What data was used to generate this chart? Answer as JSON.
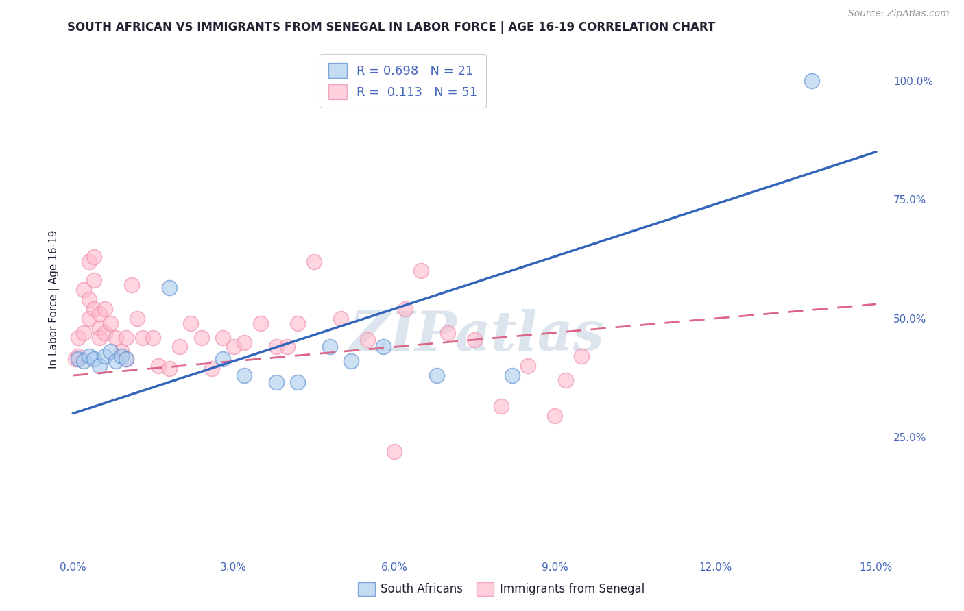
{
  "title": "SOUTH AFRICAN VS IMMIGRANTS FROM SENEGAL IN LABOR FORCE | AGE 16-19 CORRELATION CHART",
  "source": "Source: ZipAtlas.com",
  "ylabel": "In Labor Force | Age 16-19",
  "xlim": [
    -0.001,
    0.152
  ],
  "ylim": [
    0.0,
    1.08
  ],
  "xticks": [
    0.0,
    0.03,
    0.06,
    0.09,
    0.12,
    0.15
  ],
  "xtick_labels": [
    "0.0%",
    "3.0%",
    "6.0%",
    "9.0%",
    "12.0%",
    "15.0%"
  ],
  "yticks_right": [
    0.25,
    0.5,
    0.75,
    1.0
  ],
  "ytick_labels_right": [
    "25.0%",
    "50.0%",
    "75.0%",
    "100.0%"
  ],
  "blue_fill": "#AACCEE",
  "blue_edge": "#5588CC",
  "blue_line": "#3366BB",
  "pink_fill": "#FFBBCC",
  "pink_edge": "#EE88AA",
  "pink_line": "#DD6688",
  "watermark": "ZIPatlas",
  "watermark_color": "#BBCCDD",
  "legend_r_blue": "R = 0.698",
  "legend_n_blue": "N = 21",
  "legend_r_pink": "R =  0.113",
  "legend_n_pink": "N = 51",
  "blue_intercept": 0.3,
  "blue_slope": 3.67,
  "pink_intercept": 0.38,
  "pink_slope": 1.0,
  "blue_scatter_x": [
    0.001,
    0.002,
    0.003,
    0.004,
    0.005,
    0.006,
    0.007,
    0.008,
    0.009,
    0.01,
    0.018,
    0.028,
    0.032,
    0.038,
    0.042,
    0.048,
    0.052,
    0.058,
    0.068,
    0.082,
    0.138
  ],
  "blue_scatter_y": [
    0.415,
    0.41,
    0.42,
    0.415,
    0.4,
    0.42,
    0.43,
    0.41,
    0.42,
    0.415,
    0.565,
    0.415,
    0.38,
    0.365,
    0.365,
    0.44,
    0.41,
    0.44,
    0.38,
    0.38,
    1.0
  ],
  "pink_scatter_x": [
    0.0005,
    0.001,
    0.001,
    0.002,
    0.002,
    0.003,
    0.003,
    0.003,
    0.004,
    0.004,
    0.004,
    0.005,
    0.005,
    0.005,
    0.006,
    0.006,
    0.007,
    0.008,
    0.009,
    0.01,
    0.01,
    0.011,
    0.012,
    0.013,
    0.015,
    0.016,
    0.018,
    0.02,
    0.022,
    0.024,
    0.026,
    0.028,
    0.03,
    0.032,
    0.035,
    0.038,
    0.04,
    0.042,
    0.045,
    0.05,
    0.055,
    0.062,
    0.065,
    0.07,
    0.075,
    0.08,
    0.085,
    0.09,
    0.092,
    0.095,
    0.06
  ],
  "pink_scatter_y": [
    0.415,
    0.42,
    0.46,
    0.56,
    0.47,
    0.62,
    0.54,
    0.5,
    0.63,
    0.58,
    0.52,
    0.48,
    0.46,
    0.51,
    0.52,
    0.47,
    0.49,
    0.46,
    0.43,
    0.415,
    0.46,
    0.57,
    0.5,
    0.46,
    0.46,
    0.4,
    0.395,
    0.44,
    0.49,
    0.46,
    0.395,
    0.46,
    0.44,
    0.45,
    0.49,
    0.44,
    0.44,
    0.49,
    0.62,
    0.5,
    0.455,
    0.52,
    0.6,
    0.47,
    0.455,
    0.315,
    0.4,
    0.295,
    0.37,
    0.42,
    0.22
  ],
  "background_color": "#FFFFFF",
  "grid_color": "#CCCCCC",
  "title_color": "#222233",
  "axis_color": "#4466BB",
  "tick_color": "#4466BB"
}
